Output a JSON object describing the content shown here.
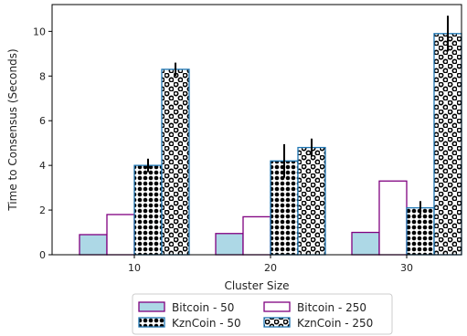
{
  "chart_data": {
    "type": "bar",
    "title": "",
    "xlabel": "Cluster Size",
    "ylabel": "Time to Consensus (Seconds)",
    "categories": [
      "10",
      "20",
      "30"
    ],
    "ylim": [
      0,
      11.2
    ],
    "yticks": [
      "0",
      "2",
      "4",
      "6",
      "8",
      "10"
    ],
    "grid": false,
    "legend_position": "bottom-center",
    "series": [
      {
        "name": "Bitcoin - 50",
        "values": [
          0.9,
          0.95,
          1.0
        ],
        "errors": [
          0,
          0,
          0
        ],
        "fill": "#add8e6",
        "stroke": "#800080",
        "pattern": "none"
      },
      {
        "name": "Bitcoin - 250",
        "values": [
          1.8,
          1.7,
          3.3
        ],
        "errors": [
          0,
          0,
          0
        ],
        "fill": "#ffffff",
        "stroke": "#800080",
        "pattern": "none"
      },
      {
        "name": "KznCoin - 50",
        "values": [
          4.0,
          4.2,
          2.1
        ],
        "errors": [
          0.3,
          0.75,
          0.3
        ],
        "fill": "#ffffff",
        "stroke": "#1f77b4",
        "pattern": "dense-dots"
      },
      {
        "name": "KznCoin - 250",
        "values": [
          8.3,
          4.8,
          9.9
        ],
        "errors": [
          0.3,
          0.4,
          0.8
        ],
        "fill": "#ffffff",
        "stroke": "#1f77b4",
        "pattern": "rings"
      }
    ]
  }
}
